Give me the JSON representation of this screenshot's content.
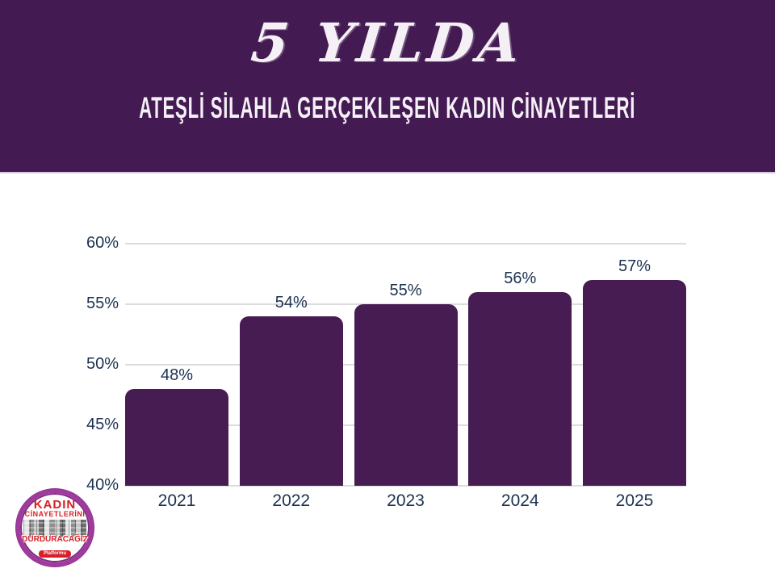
{
  "header": {
    "title": "5 YILDA",
    "subtitle": "ATEŞLİ SİLAHLA GERÇEKLEŞEN KADIN CİNAYETLERİ",
    "bg_color": "#431a52",
    "text_color": "#f4f0f6"
  },
  "chart_data": {
    "type": "bar",
    "categories": [
      "2021",
      "2022",
      "2023",
      "2024",
      "2025"
    ],
    "values": [
      48,
      54,
      55,
      56,
      57
    ],
    "value_labels": [
      "48%",
      "54%",
      "55%",
      "56%",
      "57%"
    ],
    "ylim": [
      40,
      60
    ],
    "yticks": [
      40,
      45,
      50,
      55,
      60
    ],
    "ytick_labels": [
      "40%",
      "45%",
      "50%",
      "55%",
      "60%"
    ],
    "grid": true,
    "legend": false,
    "bar_color": "#461c52",
    "grid_color": "#dcdcdc",
    "label_color": "#1b3250"
  },
  "logo": {
    "line1": "KADIN",
    "line2": "CİNAYETLERİNİ",
    "line3": "DURDURACAĞIZ",
    "line4": "Platformu",
    "ring_color": "#a23a9e",
    "accent_red": "#d71f26"
  }
}
